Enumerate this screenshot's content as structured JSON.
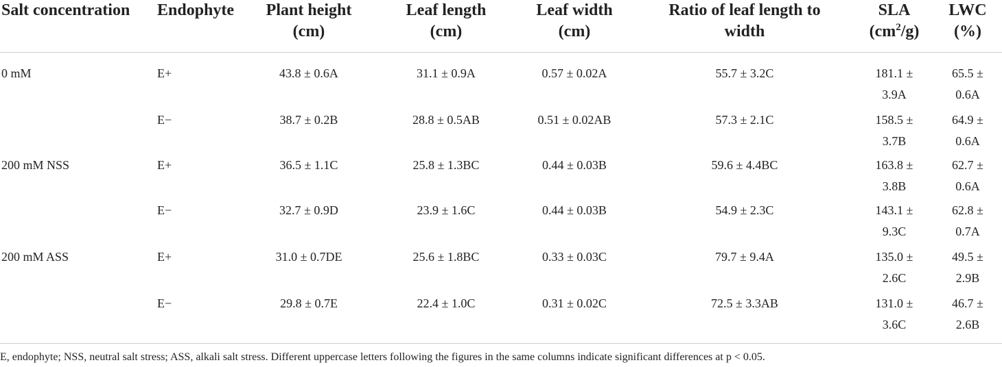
{
  "headers": {
    "salt": "Salt concentration",
    "endophyte": "Endophyte",
    "height_1": "Plant height",
    "height_2": "(cm)",
    "length_1": "Leaf length",
    "length_2": "(cm)",
    "width_1": "Leaf width",
    "width_2": "(cm)",
    "ratio_1": "Ratio of leaf length to",
    "ratio_2": "width",
    "sla_1": "SLA",
    "sla_2a": "(cm",
    "sla_sup": "2",
    "sla_2b": "/g)",
    "lwc_1": "LWC",
    "lwc_2": "(%)"
  },
  "rows": [
    {
      "salt": "0 mM",
      "endophyte": "E+",
      "height": "43.8 ± 0.6A",
      "length": "31.1 ± 0.9A",
      "width": "0.57 ± 0.02A",
      "ratio": "55.7 ± 3.2C",
      "sla_1": "181.1 ±",
      "sla_2": "3.9A",
      "lwc_1": "65.5 ±",
      "lwc_2": "0.6A"
    },
    {
      "salt": "",
      "endophyte": "E−",
      "height": "38.7 ± 0.2B",
      "length": "28.8 ± 0.5AB",
      "width": "0.51 ± 0.02AB",
      "ratio": "57.3 ± 2.1C",
      "sla_1": "158.5 ±",
      "sla_2": "3.7B",
      "lwc_1": "64.9 ±",
      "lwc_2": "0.6A"
    },
    {
      "salt": "200 mM NSS",
      "endophyte": "E+",
      "height": "36.5 ± 1.1C",
      "length": "25.8 ± 1.3BC",
      "width": "0.44 ± 0.03B",
      "ratio": "59.6 ± 4.4BC",
      "sla_1": "163.8 ±",
      "sla_2": "3.8B",
      "lwc_1": "62.7 ±",
      "lwc_2": "0.6A"
    },
    {
      "salt": "",
      "endophyte": "E−",
      "height": "32.7 ± 0.9D",
      "length": "23.9 ± 1.6C",
      "width": "0.44 ± 0.03B",
      "ratio": "54.9 ± 2.3C",
      "sla_1": "143.1 ±",
      "sla_2": "9.3C",
      "lwc_1": "62.8 ±",
      "lwc_2": "0.7A"
    },
    {
      "salt": "200 mM ASS",
      "endophyte": "E+",
      "height": "31.0 ± 0.7DE",
      "length": "25.6 ± 1.8BC",
      "width": "0.33 ± 0.03C",
      "ratio": "79.7 ± 9.4A",
      "sla_1": "135.0 ±",
      "sla_2": "2.6C",
      "lwc_1": "49.5 ±",
      "lwc_2": "2.9B"
    },
    {
      "salt": "",
      "endophyte": "E−",
      "height": "29.8 ± 0.7E",
      "length": "22.4 ± 1.0C",
      "width": "0.31 ± 0.02C",
      "ratio": "72.5 ± 3.3AB",
      "sla_1": "131.0 ±",
      "sla_2": "3.6C",
      "lwc_1": "46.7 ±",
      "lwc_2": "2.6B"
    }
  ],
  "footnote": "E, endophyte; NSS, neutral salt stress; ASS, alkali salt stress. Different uppercase letters following the figures in the same columns indicate significant differences at p < 0.05."
}
